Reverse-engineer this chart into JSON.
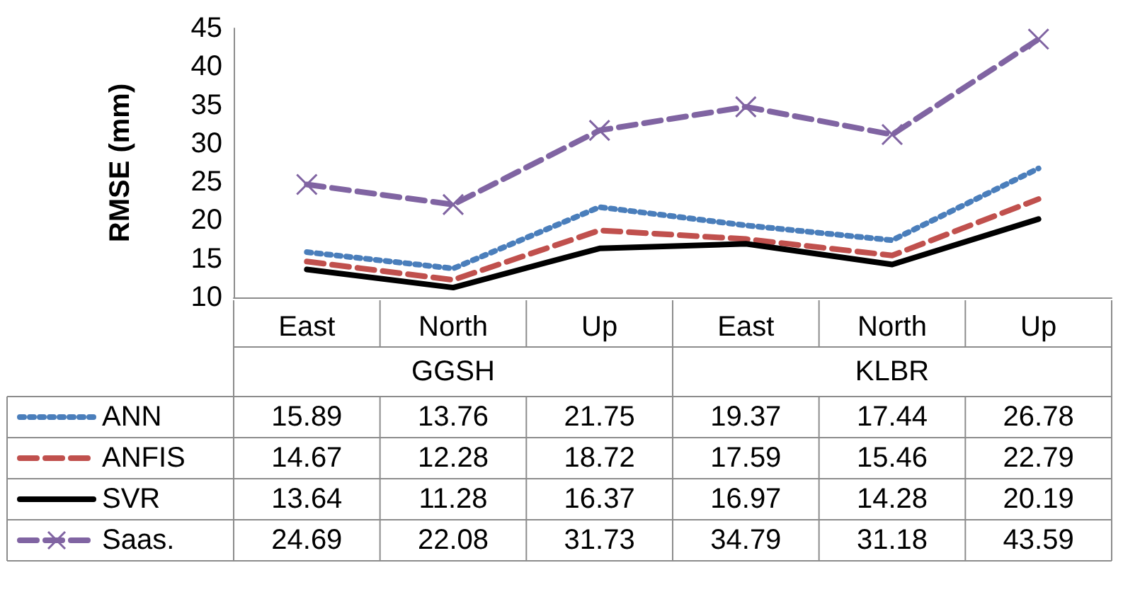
{
  "chart_data": {
    "type": "line",
    "ylabel": "RMSE (mm)",
    "categories": [
      "East",
      "North",
      "Up",
      "East",
      "North",
      "Up"
    ],
    "annotations": [
      "GGSH",
      "KLBR"
    ],
    "series": [
      {
        "name": "ANN",
        "color": "#4a7ebb",
        "line_style": "dotted",
        "marker": "none",
        "values": [
          15.89,
          13.76,
          21.75,
          19.37,
          17.44,
          26.78
        ]
      },
      {
        "name": "ANFIS",
        "color": "#c0504d",
        "line_style": "dashed",
        "marker": "none",
        "values": [
          14.67,
          12.28,
          18.72,
          17.59,
          15.46,
          22.79
        ]
      },
      {
        "name": "SVR",
        "color": "#000000",
        "line_style": "solid",
        "marker": "none",
        "values": [
          13.64,
          11.28,
          16.37,
          16.97,
          14.28,
          20.19
        ]
      },
      {
        "name": "Saas.",
        "color": "#8064a2",
        "line_style": "dashed",
        "marker": "cross",
        "values": [
          24.69,
          22.08,
          31.73,
          34.79,
          31.18,
          43.59
        ]
      }
    ],
    "ylim": [
      10,
      45
    ],
    "yticks": [
      10,
      15,
      20,
      25,
      30,
      35,
      40,
      45
    ],
    "grid": false,
    "legend": "bottom",
    "data_labels": true
  }
}
